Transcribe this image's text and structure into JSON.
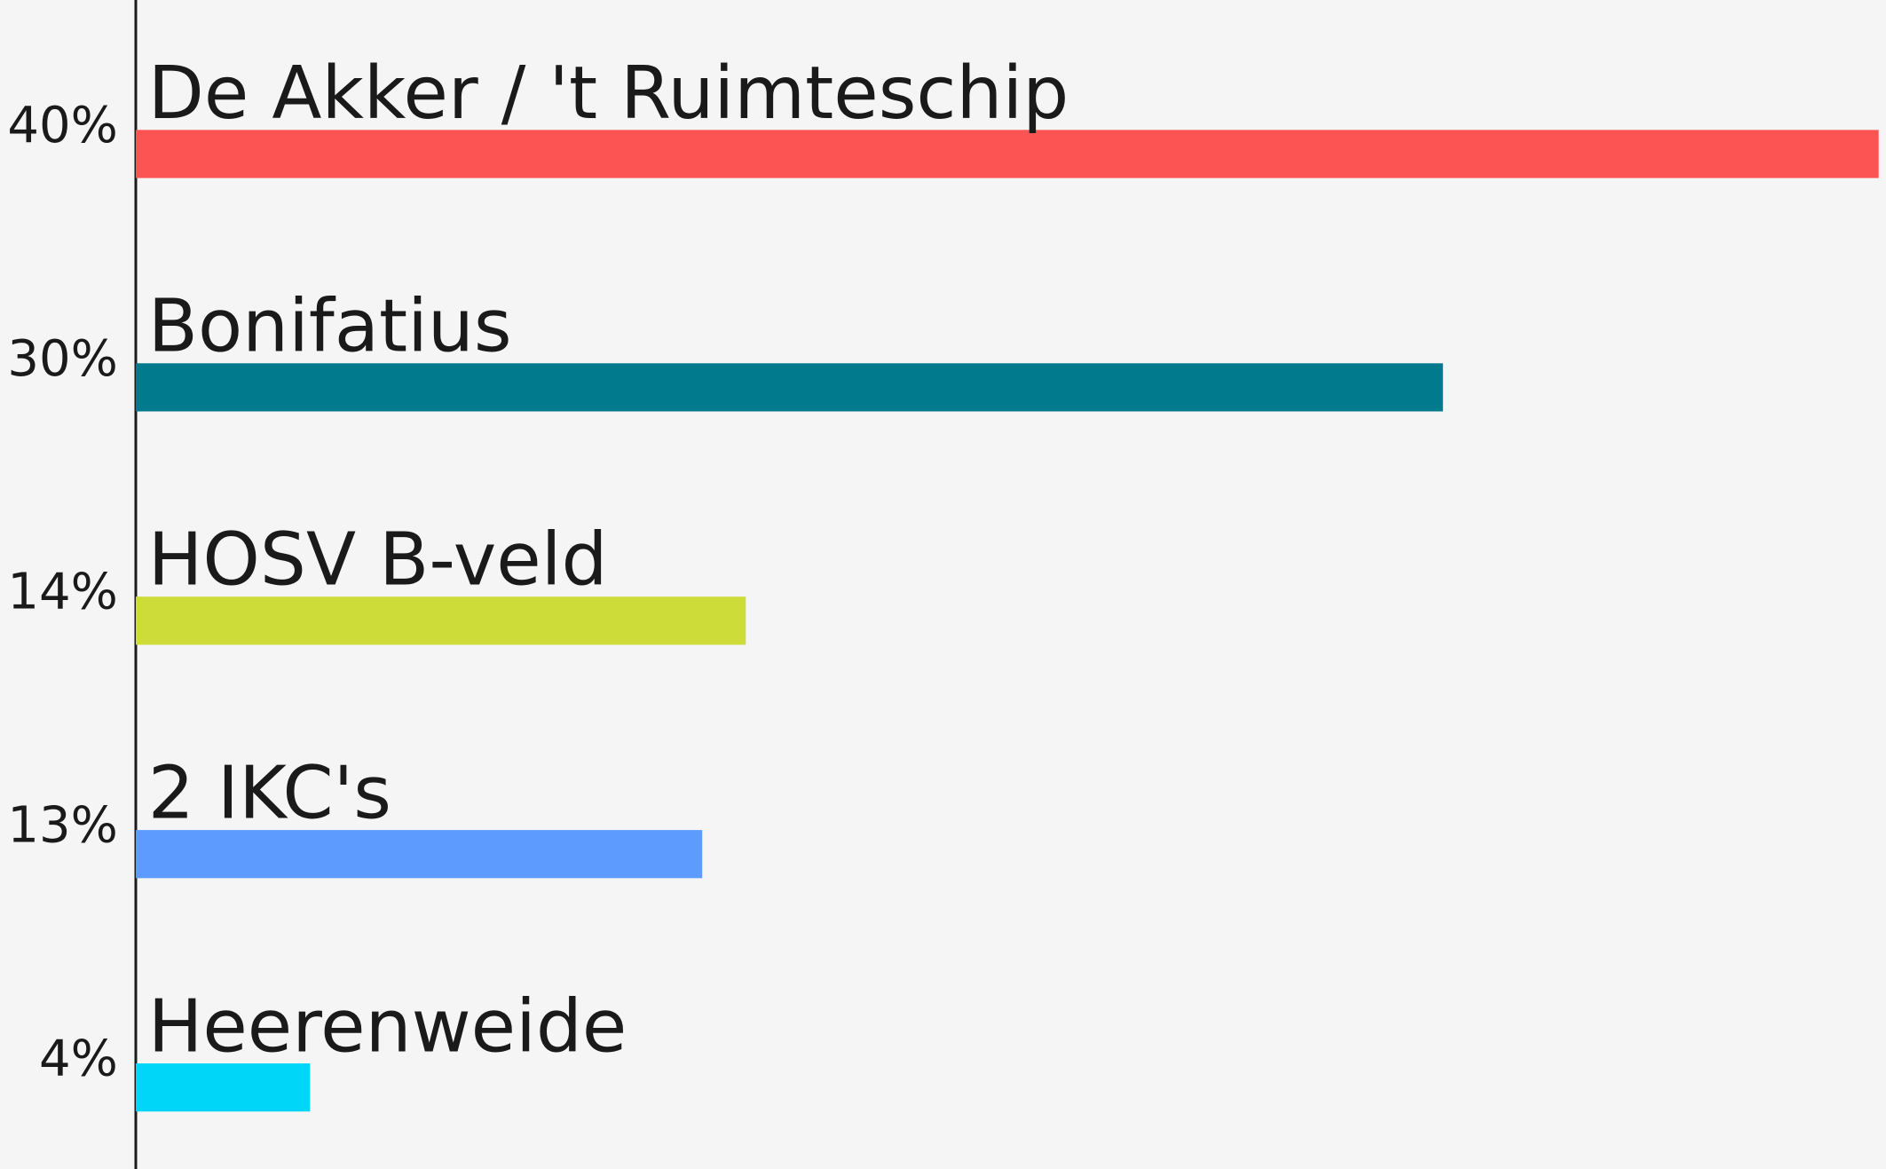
{
  "chart_data": {
    "type": "bar",
    "orientation": "horizontal",
    "categories": [
      "De Akker / 't Ruimteschip",
      "Bonifatius",
      "HOSV B-veld",
      "2 IKC's",
      "Heerenweide"
    ],
    "values": [
      40,
      30,
      14,
      13,
      4
    ],
    "value_labels": [
      "40%",
      "30%",
      "14%",
      "13%",
      "4%"
    ],
    "colors": [
      "#fc5353",
      "#017a8d",
      "#cddc39",
      "#5e9bff",
      "#00d6f7"
    ]
  }
}
